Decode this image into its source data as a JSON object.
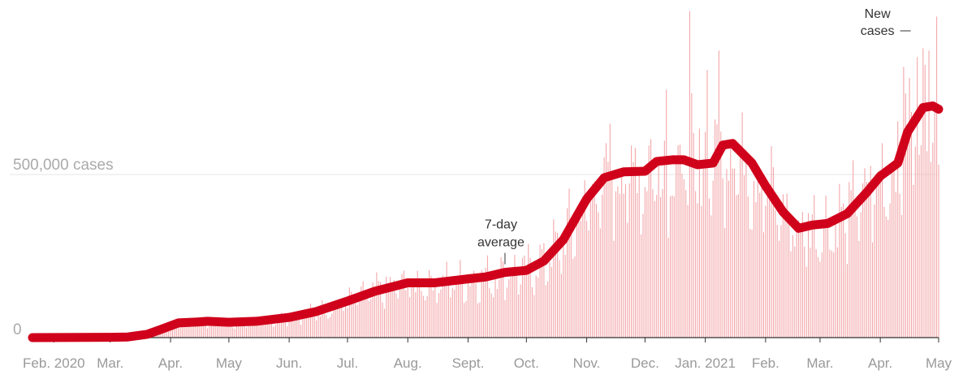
{
  "chart_data": {
    "type": "bar",
    "title": "",
    "xlabel": "",
    "ylabel": "",
    "ylim": [
      0,
      1000000
    ],
    "grid": true,
    "y_tick_labels": [
      {
        "value": 0,
        "label": "0"
      },
      {
        "value": 500000,
        "label": "500,000 cases"
      }
    ],
    "x_tick_labels": [
      {
        "date": "2020-02-01",
        "label": "Feb. 2020"
      },
      {
        "date": "2020-03-01",
        "label": "Mar."
      },
      {
        "date": "2020-04-01",
        "label": "Apr."
      },
      {
        "date": "2020-05-01",
        "label": "May"
      },
      {
        "date": "2020-06-01",
        "label": "Jun."
      },
      {
        "date": "2020-07-01",
        "label": "Jul."
      },
      {
        "date": "2020-08-01",
        "label": "Aug."
      },
      {
        "date": "2020-09-01",
        "label": "Sept."
      },
      {
        "date": "2020-10-01",
        "label": "Oct."
      },
      {
        "date": "2020-11-01",
        "label": "Nov."
      },
      {
        "date": "2020-12-01",
        "label": "Dec."
      },
      {
        "date": "2021-01-01",
        "label": "Jan. 2021"
      },
      {
        "date": "2021-02-01",
        "label": "Feb."
      },
      {
        "date": "2021-03-01",
        "label": "Mar."
      },
      {
        "date": "2021-04-01",
        "label": "Apr."
      },
      {
        "date": "2021-05-01",
        "label": "May"
      }
    ],
    "annotations": [
      {
        "label_line1": "7-day",
        "label_line2": "average",
        "series": "7-day average",
        "date": "2020-09-20"
      },
      {
        "label_line1": "New",
        "label_line2": "cases",
        "series": "New cases",
        "date": "2021-04-25"
      }
    ],
    "colors": {
      "average": "#d0021b",
      "bars": "#f3a5a8",
      "grid": "#e6e6e6",
      "axis": "#333333"
    },
    "x_range": [
      "2020-01-21",
      "2021-05-01"
    ],
    "series": [
      {
        "name": "7-day average",
        "type": "line",
        "points": [
          [
            "2020-01-21",
            0
          ],
          [
            "2020-02-15",
            500
          ],
          [
            "2020-03-01",
            1000
          ],
          [
            "2020-03-10",
            2000
          ],
          [
            "2020-03-20",
            10000
          ],
          [
            "2020-03-27",
            25000
          ],
          [
            "2020-04-05",
            45000
          ],
          [
            "2020-04-15",
            48000
          ],
          [
            "2020-04-20",
            50000
          ],
          [
            "2020-05-01",
            47000
          ],
          [
            "2020-05-15",
            50000
          ],
          [
            "2020-06-01",
            62000
          ],
          [
            "2020-06-15",
            80000
          ],
          [
            "2020-07-01",
            112000
          ],
          [
            "2020-07-15",
            142000
          ],
          [
            "2020-08-01",
            168000
          ],
          [
            "2020-08-15",
            168000
          ],
          [
            "2020-09-01",
            180000
          ],
          [
            "2020-09-10",
            186000
          ],
          [
            "2020-09-20",
            200000
          ],
          [
            "2020-10-01",
            206000
          ],
          [
            "2020-10-10",
            235000
          ],
          [
            "2020-10-20",
            300000
          ],
          [
            "2020-11-01",
            425000
          ],
          [
            "2020-11-10",
            490000
          ],
          [
            "2020-11-20",
            508000
          ],
          [
            "2020-12-01",
            510000
          ],
          [
            "2020-12-07",
            540000
          ],
          [
            "2020-12-15",
            545000
          ],
          [
            "2020-12-21",
            545000
          ],
          [
            "2020-12-28",
            530000
          ],
          [
            "2021-01-05",
            535000
          ],
          [
            "2021-01-10",
            590000
          ],
          [
            "2021-01-15",
            595000
          ],
          [
            "2021-01-25",
            535000
          ],
          [
            "2021-02-01",
            465000
          ],
          [
            "2021-02-10",
            385000
          ],
          [
            "2021-02-18",
            335000
          ],
          [
            "2021-02-25",
            345000
          ],
          [
            "2021-03-05",
            350000
          ],
          [
            "2021-03-15",
            380000
          ],
          [
            "2021-03-25",
            445000
          ],
          [
            "2021-04-01",
            495000
          ],
          [
            "2021-04-10",
            535000
          ],
          [
            "2021-04-15",
            630000
          ],
          [
            "2021-04-23",
            705000
          ],
          [
            "2021-04-28",
            710000
          ],
          [
            "2021-05-01",
            700000
          ]
        ]
      },
      {
        "name": "New cases",
        "type": "bar",
        "frequency": "daily",
        "relation_to_average": "daily values fluctuate around the 7-day average, with spikes up to about 1,000,000 in late December and about 880,000 in late April"
      }
    ]
  }
}
